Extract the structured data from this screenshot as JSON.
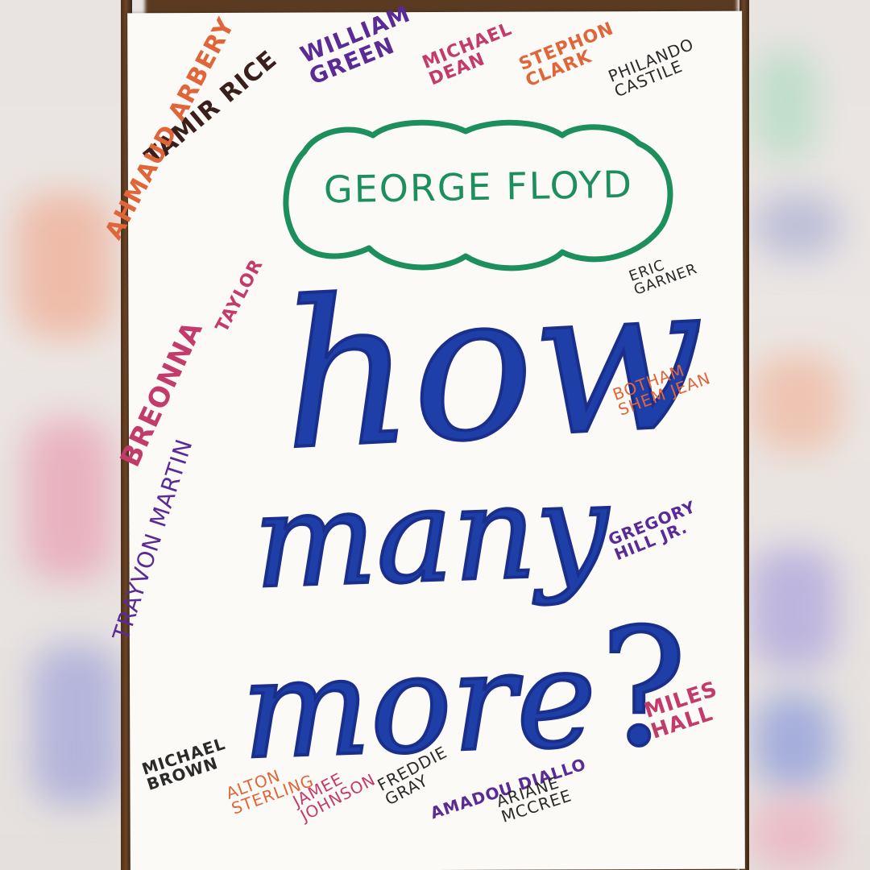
{
  "poster": {
    "center_name": "GEORGE FLOYD",
    "slogan": {
      "line1": "how",
      "line2": "many",
      "line3": "more",
      "mark": "?"
    },
    "names": {
      "tamir_rice": "TAMIR RICE",
      "william_green": "WILLIAM\nGREEN",
      "michael_dean": "MICHAEL\nDEAN",
      "stephon_clark": "STEPHON\nCLARK",
      "philando_castile": "PHILANDO\nCASTILE",
      "ahmaud_arbery": "AHMAUD ARBERY",
      "breonna_taylor_1": "TAYLOR",
      "breonna_taylor_2": "BREONNA",
      "eric_garner": "ERIC\nGARNER",
      "botham_shem_jean": "BOTHAM\nSHEM JEAN",
      "gregory_hill_jr": "GREGORY\nHILL JR.",
      "trayvon_martin": "TRAYVON MARTIN",
      "michael_brown": "MICHAEL\nBROWN",
      "alton_sterling": "ALTON\nSTERLING",
      "jamee_johnson": "JAMEE\nJOHNSON",
      "freddie_gray": "FREDDIE\nGRAY",
      "amadou_diallo": "AMADOU DIALLO",
      "ariane_mccree": "ARIANE\nMCCREE",
      "miles_hall": "MILES\nHALL"
    }
  },
  "colors": {
    "navy_ink": "#1f3fa8",
    "green_ink": "#1d8f5c",
    "brown_ink": "#3b1f1a",
    "purple_ink": "#5a2a95",
    "magenta_ink": "#c23b6a",
    "orange_ink": "#e0663a",
    "black_ink": "#2a2a2a",
    "paper": "#fbfaf7",
    "wood": "#5a3b22"
  }
}
